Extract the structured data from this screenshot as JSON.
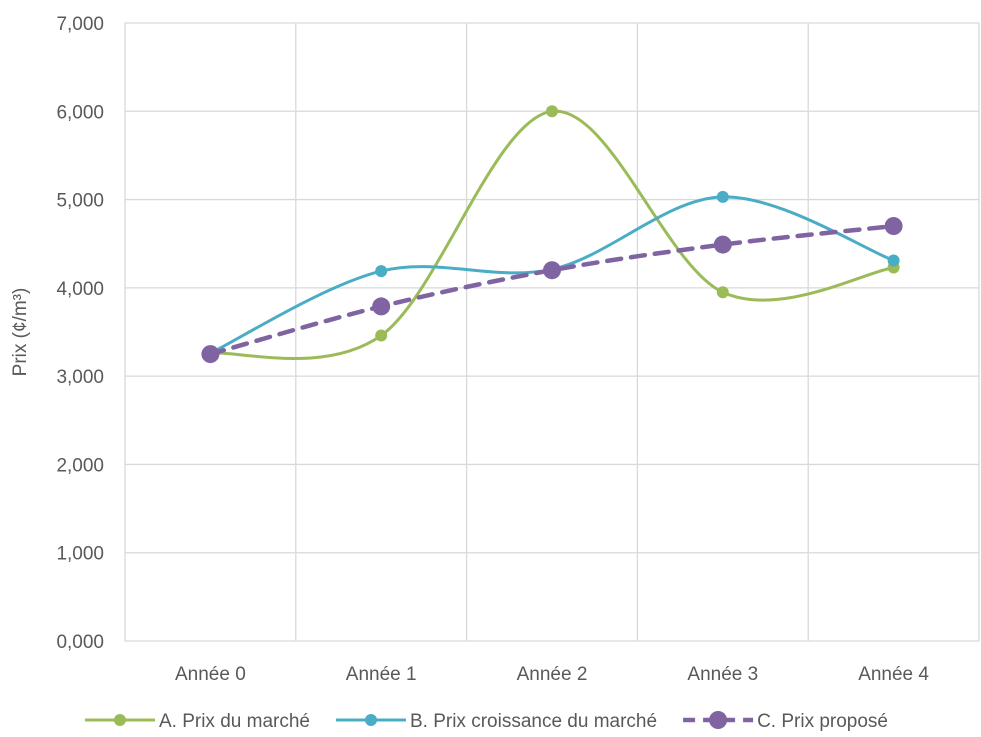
{
  "chart_data": {
    "type": "line",
    "title": "",
    "xlabel": "",
    "ylabel": "Prix (¢/m³)",
    "categories": [
      "Année 0",
      "Année 1",
      "Année 2",
      "Année 3",
      "Année 4"
    ],
    "ylim": [
      0,
      7000
    ],
    "yticks": [
      "0,000",
      "1,000",
      "2,000",
      "3,000",
      "4,000",
      "5,000",
      "6,000",
      "7,000"
    ],
    "grid": true,
    "smooth": true,
    "legend_position": "bottom",
    "series": [
      {
        "name": "A. Prix du marché",
        "values": [
          3260,
          3460,
          6000,
          3950,
          4230
        ],
        "color": "#9bbb59",
        "dashed": false,
        "marker": "small"
      },
      {
        "name": "B. Prix croissance du marché",
        "values": [
          3260,
          4190,
          4210,
          5030,
          4310
        ],
        "color": "#4bacc6",
        "dashed": false,
        "marker": "small"
      },
      {
        "name": "C. Prix proposé",
        "values": [
          3250,
          3790,
          4200,
          4490,
          4700
        ],
        "color": "#8064a2",
        "dashed": true,
        "marker": "large"
      }
    ]
  }
}
